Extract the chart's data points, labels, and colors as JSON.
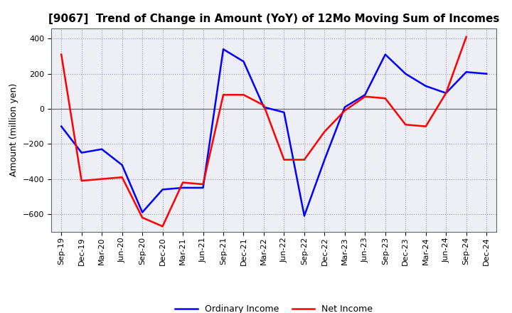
{
  "title": "[9067]  Trend of Change in Amount (YoY) of 12Mo Moving Sum of Incomes",
  "ylabel": "Amount (million yen)",
  "x_labels": [
    "Sep-19",
    "Dec-19",
    "Mar-20",
    "Jun-20",
    "Sep-20",
    "Dec-20",
    "Mar-21",
    "Jun-21",
    "Sep-21",
    "Dec-21",
    "Mar-22",
    "Jun-22",
    "Sep-22",
    "Dec-22",
    "Mar-23",
    "Jun-23",
    "Sep-23",
    "Dec-23",
    "Mar-24",
    "Jun-24",
    "Sep-24",
    "Dec-24"
  ],
  "ordinary_income": [
    -100,
    -250,
    -230,
    -320,
    -590,
    -460,
    -450,
    -450,
    340,
    270,
    10,
    -20,
    -610,
    -290,
    10,
    80,
    310,
    200,
    130,
    90,
    210,
    200
  ],
  "net_income": [
    310,
    -410,
    -400,
    -390,
    -620,
    -670,
    -420,
    -430,
    80,
    80,
    20,
    -290,
    -290,
    -130,
    -10,
    70,
    60,
    -90,
    -100,
    90,
    410,
    null
  ],
  "ordinary_color": "#0000ff",
  "net_color": "#ff0000",
  "grid_color": "#9999bb",
  "plot_bg_color": "#eeeef5",
  "ylim": [
    -700,
    460
  ],
  "yticks": [
    -600,
    -400,
    -200,
    0,
    200,
    400
  ],
  "title_fontsize": 11,
  "label_fontsize": 9,
  "tick_fontsize": 8,
  "legend_labels": [
    "Ordinary Income",
    "Net Income"
  ],
  "background_color": "#ffffff",
  "zero_line_color": "#666666"
}
